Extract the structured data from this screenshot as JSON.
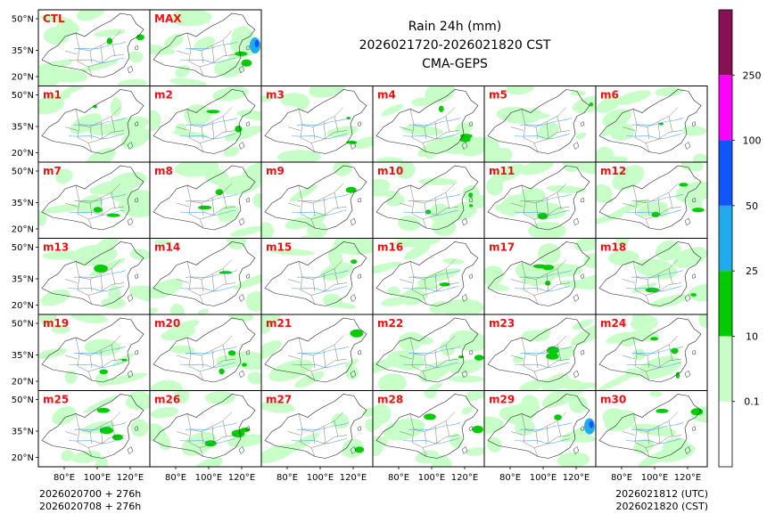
{
  "chart_data": {
    "type": "heatmap",
    "title": "Rain 24h (mm)",
    "valid_period": "2026021720-2026021820 CST",
    "model": "CMA-GEPS",
    "panels": [
      "CTL",
      "MAX",
      "m1",
      "m2",
      "m3",
      "m4",
      "m5",
      "m6",
      "m7",
      "m8",
      "m9",
      "m10",
      "m11",
      "m12",
      "m13",
      "m14",
      "m15",
      "m16",
      "m17",
      "m18",
      "m19",
      "m20",
      "m21",
      "m22",
      "m23",
      "m24",
      "m25",
      "m26",
      "m27",
      "m28",
      "m29",
      "m30"
    ],
    "lat_ticks": [
      "50°N",
      "35°N",
      "20°N"
    ],
    "lon_ticks": [
      "80°E",
      "100°E",
      "120°E"
    ],
    "colorbar": {
      "levels": [
        "0.1",
        "10",
        "25",
        "50",
        "100",
        "250"
      ],
      "colors": [
        "#ffffff",
        "#c8ffc8",
        "#00cc00",
        "#22aaee",
        "#1155ff",
        "#ff00ff",
        "#881155"
      ]
    }
  },
  "footer": {
    "init_utc": "2026020700 + 276h",
    "init_cst": "2026020708 + 276h",
    "valid_utc": "2026021812 (UTC)",
    "valid_cst": "2026021820 (CST)"
  }
}
